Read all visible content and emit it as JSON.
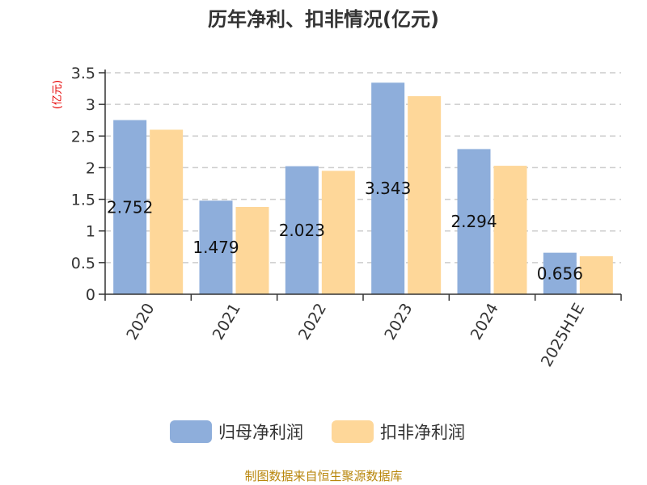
{
  "colors": {
    "series1": "#8eaedb",
    "series2": "#fed799",
    "axis": "#333333",
    "grid": "#cccccc",
    "ylabel": "#e60000",
    "source": "#b8860b"
  },
  "source_text": "制图数据来自恒生聚源数据库",
  "chart_data": {
    "type": "bar",
    "title": "历年净利、扣非情况(亿元)",
    "ylabel": "(亿元)",
    "xlabel": "",
    "ylim": [
      0,
      3.5
    ],
    "yticks": [
      "0",
      "0.5",
      "1",
      "1.5",
      "2",
      "2.5",
      "3",
      "3.5"
    ],
    "grid": true,
    "legend_position": "bottom",
    "categories": [
      "2020",
      "2021",
      "2022",
      "2023",
      "2024",
      "2025H1E"
    ],
    "series": [
      {
        "name": "归母净利润",
        "values": [
          2.752,
          1.479,
          2.023,
          3.343,
          2.294,
          0.656
        ],
        "labels": [
          "2.752",
          "1.479",
          "2.023",
          "3.343",
          "2.294",
          "0.656"
        ]
      },
      {
        "name": "扣非净利润",
        "values": [
          2.6,
          1.38,
          1.95,
          3.13,
          2.03,
          0.6
        ]
      }
    ]
  }
}
